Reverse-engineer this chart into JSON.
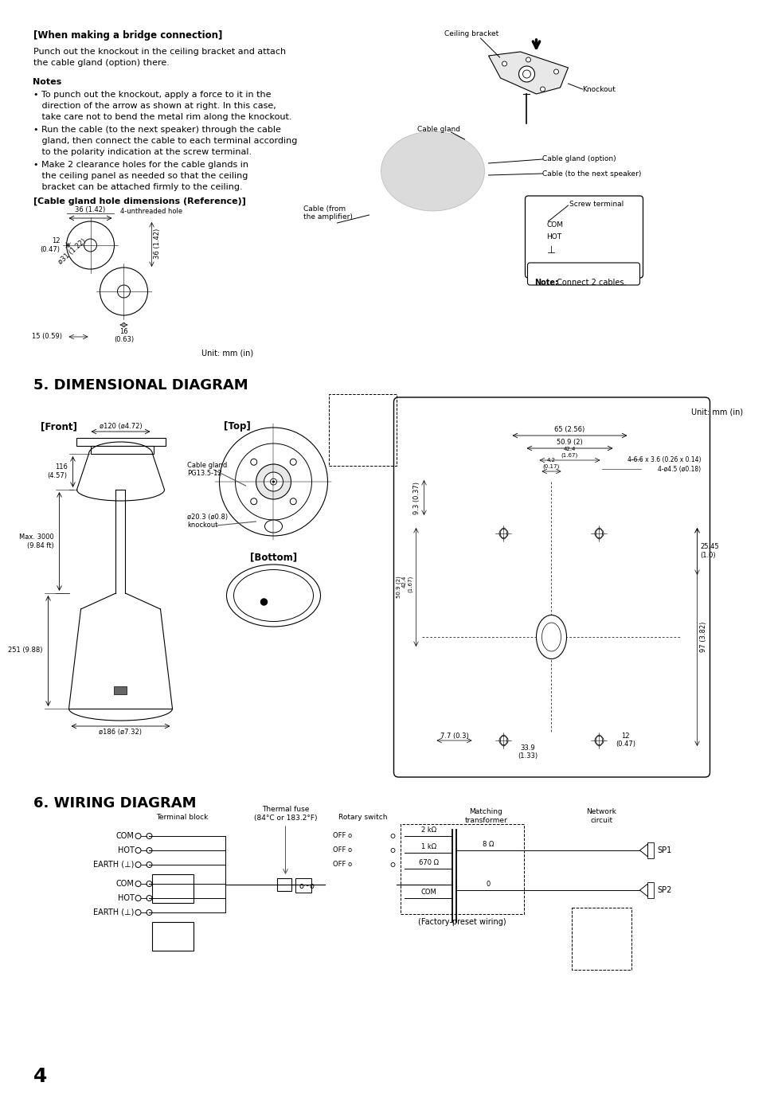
{
  "bg_color": "#ffffff",
  "page_number": "4",
  "section5_title": "5. DIMENSIONAL DIAGRAM",
  "section6_title": "6. WIRING DIAGRAM",
  "unit_mm": "Unit: mm (in)",
  "bridge_heading": "[When making a bridge connection]",
  "bridge_p1": "Punch out the knockout in the ceiling bracket and attach",
  "bridge_p2": "the cable gland (option) there.",
  "notes_heading": "Notes",
  "note1_lines": [
    "• To punch out the knockout, apply a force to it in the",
    "   direction of the arrow as shown at right. In this case,",
    "   take care not to bend the metal rim along the knockout."
  ],
  "note2_lines": [
    "• Run the cable (to the next speaker) through the cable",
    "   gland, then connect the cable to each terminal according",
    "   to the polarity indication at the screw terminal."
  ],
  "note3_lines": [
    "• Make 2 clearance holes for the cable glands in",
    "   the ceiling panel as needed so that the ceiling",
    "   bracket can be attached firmly to the ceiling."
  ],
  "cable_gland_dim_heading": "[Cable gland hole dimensions (Reference)]",
  "label_36_142": "36 (1.42)",
  "label_4unthreaded": "4-unthreaded hole",
  "label_031_122": "ø31 (1.22)",
  "label_15_059": "15 (0.59)",
  "ceiling_bracket": "Ceiling bracket",
  "knockout_label": "Knockout",
  "cable_gland_label": "Cable gland",
  "cable_gland_option": "Cable gland (option)",
  "cable_next_speaker": "Cable (to the next speaker)",
  "cable_from_amp": "Cable (from\nthe amplifier)",
  "screw_terminal": "Screw terminal",
  "com_label": "COM",
  "hot_label": "HOT",
  "note_connect_bold": "Note:",
  "note_connect_rest": " Connect 2 cables.",
  "front_label": "[Front]",
  "top_label": "[Top]",
  "bottom_label": "[Bottom]",
  "cable_gland_pg": "Cable gland\nPG13.5-12",
  "dim_o120": "ø120 (ø4.72)",
  "dim_max3000": "Max. 3000\n(9.84 ft)",
  "dim_116": "116\n(4.57)",
  "dim_251": "251 (9.88)",
  "dim_o186": "ø186 (ø7.32)",
  "dim_o203": "ø20.3 (ø0.8)\nknockout",
  "dim_65": "65 (2.56)",
  "dim_509_2": "50.9 (2)",
  "dim_424": "42.4\n(1.67)",
  "dim_42": "4.2\n(0.17)",
  "dim_93": "9.3 (0.37)",
  "dim_slot1": "4-6.6 x 3.6 (0.26 x 0.14)",
  "dim_slot2": "4-ø4.5 (ø0.18)",
  "dim_509_2b": "50.9 (2)",
  "dim_424b": "42.4\n(1.67)",
  "dim_2545": "25.45\n(1.0)",
  "dim_97": "97 (3.82)",
  "dim_77": "7.7 (0.3)",
  "dim_339": "33.9\n(1.33)",
  "dim_12b": "12\n(0.47)",
  "terminal_block": "Terminal block",
  "thermal_fuse_line1": "Thermal fuse",
  "thermal_fuse_line2": "(84°C or 183.2°F)",
  "rotary_switch": "Rotary switch",
  "matching_transformer_l1": "Matching",
  "matching_transformer_l2": "transformer",
  "network_circuit_l1": "Network",
  "network_circuit_l2": "circuit",
  "off_label": "OFF o",
  "res_2k": "2 kΩ",
  "res_1k": "1 kΩ",
  "res_670": "670 Ω",
  "res_com": "COM",
  "ohm_8": "8 Ω",
  "zero_0": "0",
  "sp1": "SP1",
  "sp2": "SP2",
  "factory_preset": "(Factory-preset wiring)",
  "term_top": [
    "COM",
    "HOT",
    "EARTH (⊥)"
  ],
  "term_bot": [
    "COM",
    "HOT",
    "EARTH (⊥)"
  ]
}
